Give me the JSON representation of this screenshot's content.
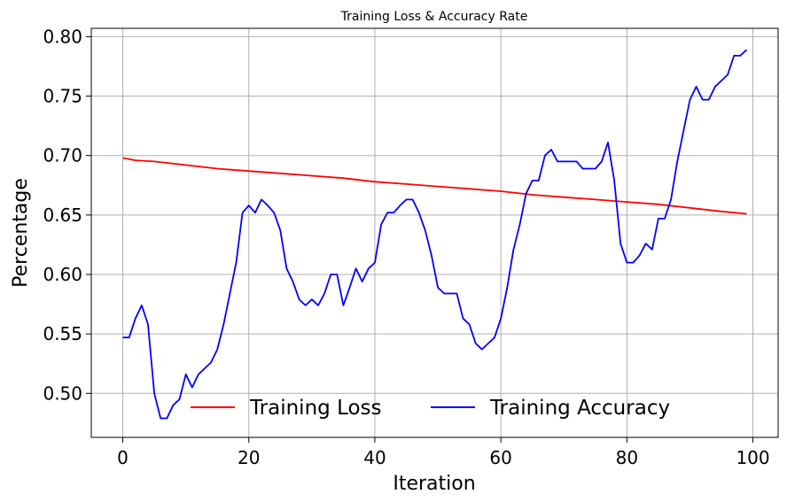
{
  "chart_data": {
    "type": "line",
    "title": "Training Loss & Accuracy Rate",
    "xlabel": "Iteration",
    "ylabel": "Percentage",
    "xlim": [
      -5,
      104
    ],
    "ylim": [
      0.463,
      0.807
    ],
    "xticks": [
      0,
      20,
      40,
      60,
      80,
      100
    ],
    "yticks": [
      0.5,
      0.55,
      0.6,
      0.65,
      0.7,
      0.75,
      0.8
    ],
    "xtick_labels": [
      "0",
      "20",
      "40",
      "60",
      "80",
      "100"
    ],
    "ytick_labels": [
      "0.50",
      "0.55",
      "0.60",
      "0.65",
      "0.70",
      "0.75",
      "0.80"
    ],
    "grid": true,
    "legend_position": "lower-center",
    "series": [
      {
        "name": "Training Loss",
        "color": "#ff0000",
        "x": [
          0,
          2,
          5,
          10,
          15,
          20,
          25,
          30,
          35,
          40,
          45,
          50,
          55,
          60,
          65,
          70,
          75,
          80,
          85,
          90,
          95,
          99
        ],
        "y": [
          0.698,
          0.696,
          0.695,
          0.692,
          0.689,
          0.687,
          0.685,
          0.683,
          0.681,
          0.678,
          0.676,
          0.674,
          0.672,
          0.67,
          0.667,
          0.665,
          0.663,
          0.661,
          0.659,
          0.656,
          0.653,
          0.651
        ]
      },
      {
        "name": "Training Accuracy",
        "color": "#0000ff",
        "x": [
          0,
          1,
          2,
          3,
          4,
          5,
          6,
          7,
          8,
          9,
          10,
          11,
          12,
          13,
          14,
          15,
          16,
          17,
          18,
          19,
          20,
          21,
          22,
          23,
          24,
          25,
          26,
          27,
          28,
          29,
          30,
          31,
          32,
          33,
          34,
          35,
          36,
          37,
          38,
          39,
          40,
          41,
          42,
          43,
          44,
          45,
          46,
          47,
          48,
          49,
          50,
          51,
          52,
          53,
          54,
          55,
          56,
          57,
          58,
          59,
          60,
          61,
          62,
          63,
          64,
          65,
          66,
          67,
          68,
          69,
          70,
          71,
          72,
          73,
          74,
          75,
          76,
          77,
          78,
          79,
          80,
          81,
          82,
          83,
          84,
          85,
          86,
          87,
          88,
          89,
          90,
          91,
          92,
          93,
          94,
          95,
          96,
          97,
          98,
          99
        ],
        "y": [
          0.547,
          0.547,
          0.563,
          0.574,
          0.558,
          0.5,
          0.479,
          0.479,
          0.49,
          0.495,
          0.516,
          0.505,
          0.516,
          0.521,
          0.526,
          0.537,
          0.558,
          0.584,
          0.61,
          0.652,
          0.658,
          0.652,
          0.663,
          0.658,
          0.652,
          0.637,
          0.605,
          0.594,
          0.579,
          0.574,
          0.579,
          0.574,
          0.584,
          0.6,
          0.6,
          0.574,
          0.589,
          0.605,
          0.594,
          0.605,
          0.61,
          0.642,
          0.652,
          0.652,
          0.658,
          0.663,
          0.663,
          0.652,
          0.637,
          0.616,
          0.589,
          0.584,
          0.584,
          0.584,
          0.563,
          0.558,
          0.542,
          0.537,
          0.542,
          0.547,
          0.563,
          0.589,
          0.621,
          0.642,
          0.668,
          0.679,
          0.679,
          0.7,
          0.705,
          0.695,
          0.695,
          0.695,
          0.695,
          0.689,
          0.689,
          0.689,
          0.695,
          0.711,
          0.679,
          0.626,
          0.61,
          0.61,
          0.616,
          0.626,
          0.621,
          0.647,
          0.647,
          0.663,
          0.695,
          0.721,
          0.747,
          0.758,
          0.747,
          0.747,
          0.758,
          0.763,
          0.768,
          0.784,
          0.784,
          0.789
        ]
      }
    ]
  }
}
